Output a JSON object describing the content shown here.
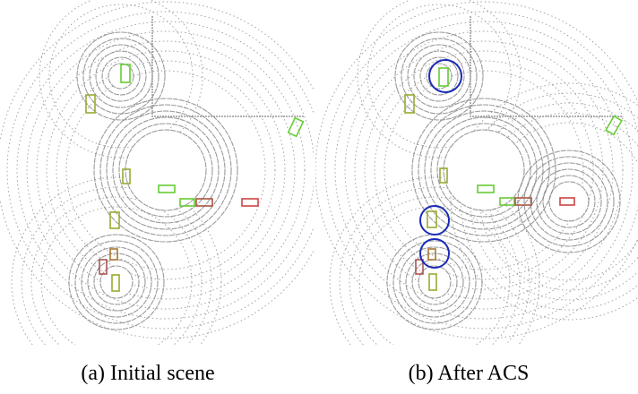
{
  "figure": {
    "panels": [
      {
        "caption": "(a) Initial scene"
      },
      {
        "caption": "(b) After ACS"
      }
    ]
  }
}
